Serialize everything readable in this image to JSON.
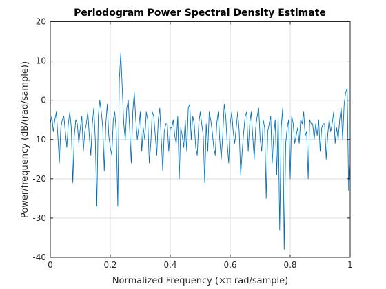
{
  "chart_data": {
    "type": "line",
    "title": "Periodogram Power Spectral Density Estimate",
    "xlabel": "Normalized Frequency  (×π rad/sample)",
    "ylabel": "Power/frequency (dB/(rad/sample))",
    "xlim": [
      0,
      1
    ],
    "ylim": [
      -40,
      20
    ],
    "xticks": [
      0,
      0.2,
      0.4,
      0.6,
      0.8,
      1
    ],
    "yticks": [
      -40,
      -30,
      -20,
      -10,
      0,
      10,
      20
    ],
    "xtick_labels": [
      "0",
      "0.2",
      "0.4",
      "0.6",
      "0.8",
      "1"
    ],
    "ytick_labels": [
      "-40",
      "-30",
      "-20",
      "-10",
      "0",
      "10",
      "20"
    ],
    "grid": true,
    "series_color": "#0072bd",
    "series": [
      {
        "x": [
          0,
          0.005,
          0.01,
          0.015,
          0.02,
          0.025,
          0.03,
          0.035,
          0.04,
          0.045,
          0.05,
          0.055,
          0.06,
          0.065,
          0.07,
          0.075,
          0.08,
          0.085,
          0.09,
          0.095,
          0.1,
          0.105,
          0.11,
          0.115,
          0.12,
          0.125,
          0.13,
          0.135,
          0.14,
          0.145,
          0.15,
          0.155,
          0.16,
          0.165,
          0.17,
          0.175,
          0.18,
          0.185,
          0.19,
          0.195,
          0.2,
          0.205,
          0.21,
          0.215,
          0.22,
          0.225,
          0.23,
          0.235,
          0.24,
          0.245,
          0.25,
          0.255,
          0.26,
          0.265,
          0.27,
          0.275,
          0.28,
          0.285,
          0.29,
          0.295,
          0.3,
          0.305,
          0.31,
          0.315,
          0.32,
          0.325,
          0.33,
          0.335,
          0.34,
          0.345,
          0.35,
          0.355,
          0.36,
          0.365,
          0.37,
          0.375,
          0.38,
          0.385,
          0.39,
          0.395,
          0.4,
          0.405,
          0.41,
          0.415,
          0.42,
          0.425,
          0.43,
          0.435,
          0.44,
          0.445,
          0.45,
          0.455,
          0.46,
          0.465,
          0.47,
          0.475,
          0.48,
          0.485,
          0.49,
          0.495,
          0.5,
          0.505,
          0.51,
          0.515,
          0.52,
          0.525,
          0.53,
          0.535,
          0.54,
          0.545,
          0.55,
          0.555,
          0.56,
          0.565,
          0.57,
          0.575,
          0.58,
          0.585,
          0.59,
          0.595,
          0.6,
          0.605,
          0.61,
          0.615,
          0.62,
          0.625,
          0.63,
          0.635,
          0.64,
          0.645,
          0.65,
          0.655,
          0.66,
          0.665,
          0.67,
          0.675,
          0.68,
          0.685,
          0.69,
          0.695,
          0.7,
          0.705,
          0.71,
          0.715,
          0.72,
          0.725,
          0.73,
          0.735,
          0.74,
          0.745,
          0.75,
          0.755,
          0.76,
          0.765,
          0.77,
          0.775,
          0.78,
          0.785,
          0.79,
          0.795,
          0.8,
          0.805,
          0.81,
          0.815,
          0.82,
          0.825,
          0.83,
          0.835,
          0.84,
          0.845,
          0.85,
          0.855,
          0.86,
          0.865,
          0.87,
          0.875,
          0.88,
          0.885,
          0.89,
          0.895,
          0.9,
          0.905,
          0.91,
          0.915,
          0.92,
          0.925,
          0.93,
          0.935,
          0.94,
          0.945,
          0.95,
          0.955,
          0.96,
          0.965,
          0.97,
          0.975,
          0.98,
          0.985,
          0.99,
          0.995,
          1
        ],
        "y": [
          -6,
          -4,
          -8,
          -5,
          -3,
          -9,
          -16,
          -7,
          -5,
          -4,
          -8,
          -12,
          -6,
          -3,
          -7,
          -21,
          -9,
          -5,
          -6,
          -11,
          -7,
          -4,
          -13,
          -8,
          -6,
          -3,
          -9,
          -14,
          -6,
          -2,
          -10,
          -27,
          -4,
          0,
          -3,
          -7,
          -18,
          -6,
          -1,
          -9,
          -12,
          -14,
          -5,
          -3,
          -8,
          -27,
          5,
          12,
          3,
          -6,
          -10,
          -2,
          0,
          -8,
          -16,
          -3,
          2,
          -5,
          -10,
          -7,
          -3,
          -13,
          -7,
          -10,
          -3,
          -5,
          -16,
          -11,
          -3,
          -4,
          -9,
          -14,
          -5,
          -2,
          -10,
          -18,
          -8,
          -6,
          -6,
          -13,
          -7,
          -7,
          -5,
          -9,
          -11,
          -4,
          -20,
          -7,
          -9,
          -12,
          -5,
          -13,
          -2,
          -1,
          -10,
          -4,
          -6,
          -12,
          -14,
          -6,
          -3,
          -6,
          -9,
          -21,
          -6,
          -13,
          -3,
          -5,
          -8,
          -12,
          -14,
          -6,
          -3,
          -10,
          -15,
          -9,
          -1,
          -4,
          -11,
          -16,
          -6,
          -3,
          -8,
          -11,
          -7,
          -3,
          -8,
          -19,
          -13,
          -8,
          -4,
          -3,
          -13,
          -6,
          -3,
          -9,
          -15,
          -7,
          -4,
          -2,
          -10,
          -13,
          -5,
          -7,
          -25,
          -8,
          -6,
          -4,
          -16,
          -9,
          -5,
          -19,
          -4,
          -33,
          -7,
          -2,
          -38,
          -11,
          -7,
          -5,
          -20,
          -4,
          -6,
          -11,
          -9,
          -7,
          -11,
          -5,
          -6,
          -3,
          -9,
          -8,
          -20,
          -5,
          -6,
          -6,
          -10,
          -6,
          -9,
          -5,
          -13,
          -7,
          -6,
          -6,
          -15,
          -9,
          -5,
          -8,
          -6,
          -3,
          -11,
          -7,
          -10,
          -5,
          -2,
          -10,
          -1,
          2,
          3,
          -23,
          -16
        ]
      }
    ]
  }
}
